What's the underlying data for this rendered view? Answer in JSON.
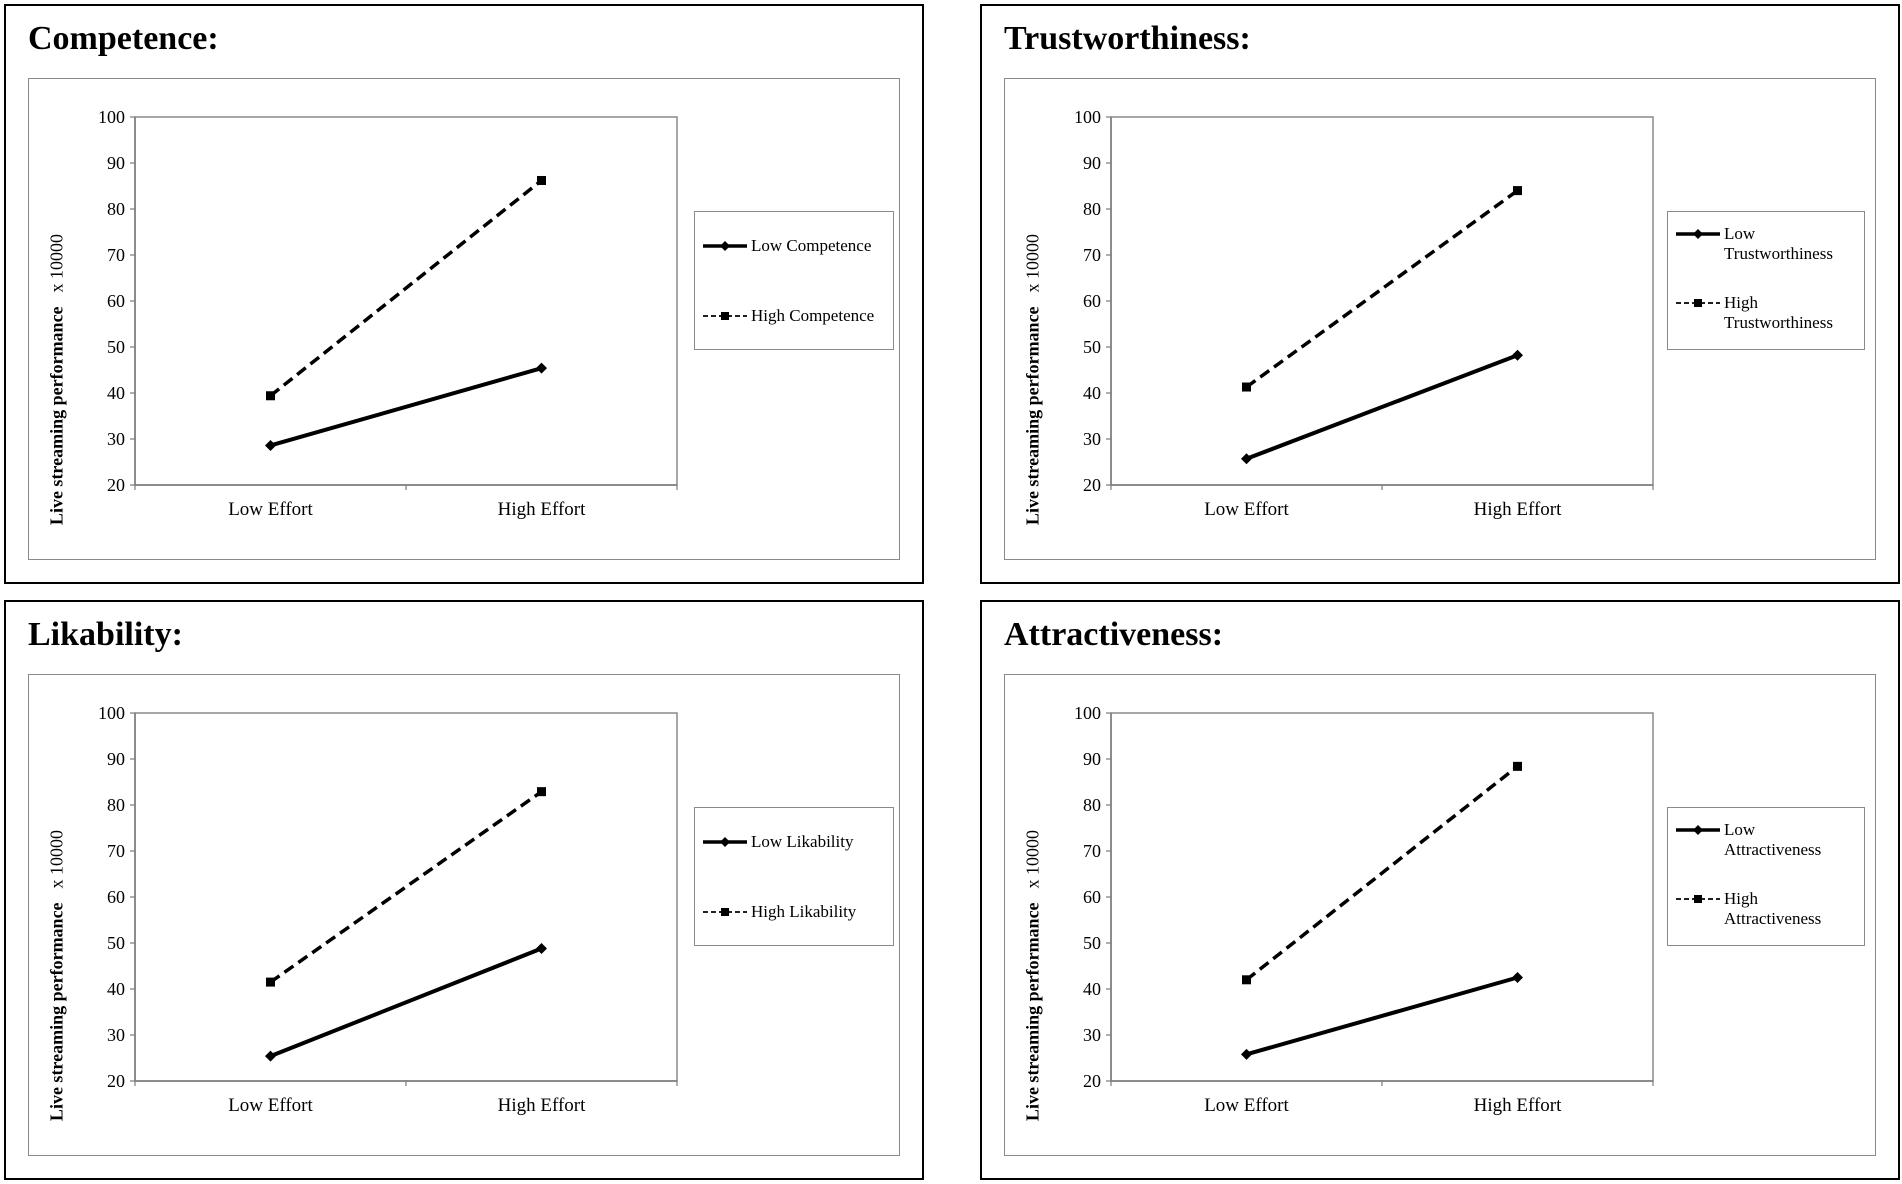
{
  "chart_data": [
    {
      "type": "line",
      "title": "Competence:",
      "ylabel": "Live streaming performance",
      "yunit": "x 10000",
      "categories": [
        "Low Effort",
        "High Effort"
      ],
      "ylim": [
        20,
        100
      ],
      "yticks": [
        20,
        30,
        40,
        50,
        60,
        70,
        80,
        90,
        100
      ],
      "legend_position": "right",
      "grid": false,
      "series": [
        {
          "name": "Low Competence",
          "values": [
            28.6,
            45.4
          ],
          "style": "solid",
          "marker": "diamond"
        },
        {
          "name": "High Competence",
          "values": [
            39.4,
            86.2
          ],
          "style": "dashed",
          "marker": "square"
        }
      ]
    },
    {
      "type": "line",
      "title": "Trustworthiness:",
      "ylabel": "Live streaming performance",
      "yunit": "x 10000",
      "categories": [
        "Low Effort",
        "High Effort"
      ],
      "ylim": [
        20,
        100
      ],
      "yticks": [
        20,
        30,
        40,
        50,
        60,
        70,
        80,
        90,
        100
      ],
      "legend_position": "right",
      "grid": false,
      "series": [
        {
          "name": "Low Trustworthiness",
          "values": [
            25.7,
            48.2
          ],
          "style": "solid",
          "marker": "diamond"
        },
        {
          "name": "High Trustworthiness",
          "values": [
            41.3,
            84.0
          ],
          "style": "dashed",
          "marker": "square"
        }
      ]
    },
    {
      "type": "line",
      "title": "Likability:",
      "ylabel": "Live streaming performance",
      "yunit": "x 10000",
      "categories": [
        "Low Effort",
        "High Effort"
      ],
      "ylim": [
        20,
        100
      ],
      "yticks": [
        20,
        30,
        40,
        50,
        60,
        70,
        80,
        90,
        100
      ],
      "legend_position": "right",
      "grid": false,
      "series": [
        {
          "name": "Low Likability",
          "values": [
            25.4,
            48.8
          ],
          "style": "solid",
          "marker": "diamond"
        },
        {
          "name": "High Likability",
          "values": [
            41.5,
            82.9
          ],
          "style": "dashed",
          "marker": "square"
        }
      ]
    },
    {
      "type": "line",
      "title": "Attractiveness:",
      "ylabel": "Live streaming performance",
      "yunit": "x 10000",
      "categories": [
        "Low Effort",
        "High Effort"
      ],
      "ylim": [
        20,
        100
      ],
      "yticks": [
        20,
        30,
        40,
        50,
        60,
        70,
        80,
        90,
        100
      ],
      "legend_position": "right",
      "grid": false,
      "series": [
        {
          "name": "Low Attractiveness",
          "values": [
            25.8,
            42.5
          ],
          "style": "solid",
          "marker": "diamond"
        },
        {
          "name": "High Attractiveness",
          "values": [
            42.0,
            88.4
          ],
          "style": "dashed",
          "marker": "square"
        }
      ]
    }
  ]
}
